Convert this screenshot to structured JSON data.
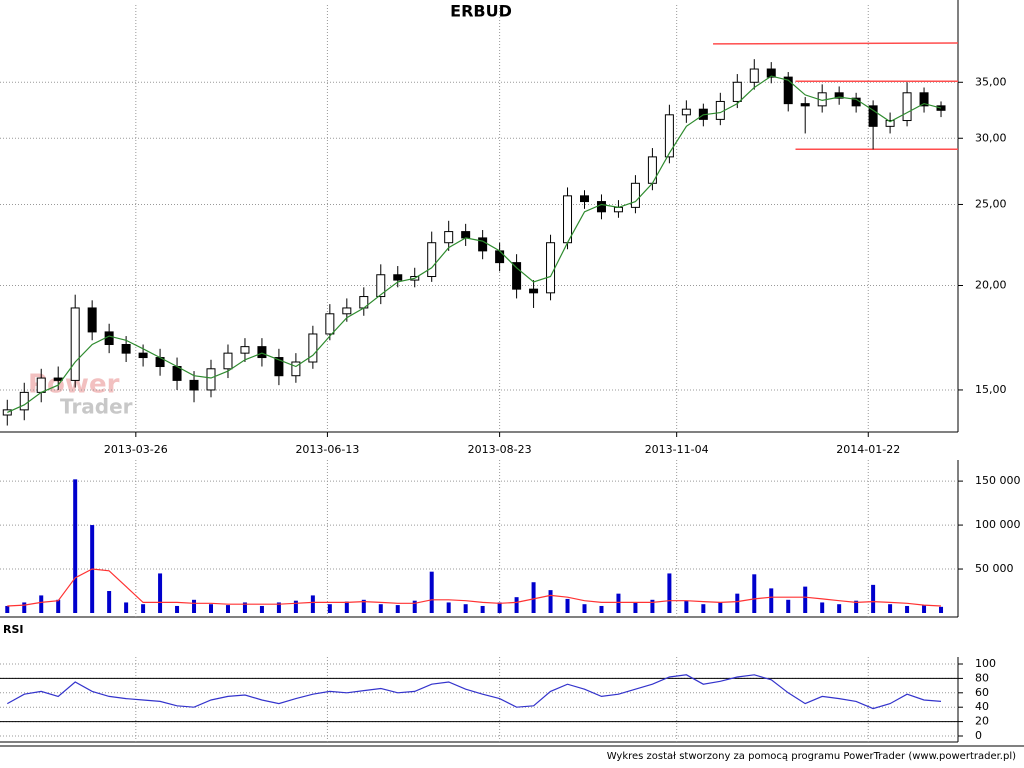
{
  "chart_data": {
    "type": "candlestick",
    "title": "ERBUD",
    "watermark": [
      "Power",
      "Trader"
    ],
    "footer": "Wykres został stworzony za pomocą programu PowerTrader (www.powertrader.pl)",
    "log_y": true,
    "grid": true,
    "xlim": [
      "2013-01-29",
      "2014-02-28"
    ],
    "xticks": [
      "2013-03-26",
      "2013-06-13",
      "2013-08-23",
      "2013-11-04",
      "2014-01-22"
    ],
    "ylim": [
      13.36,
      43.9
    ],
    "yticks": [
      {
        "value": 15,
        "label": "15,00"
      },
      {
        "value": 20,
        "label": "20,00"
      },
      {
        "value": 25,
        "label": "25,00"
      },
      {
        "value": 30,
        "label": "30,00"
      },
      {
        "value": 35,
        "label": "35,00"
      }
    ],
    "up_color": "#ffffff",
    "down_color": "#000000",
    "ma_color": "#2e8b2e",
    "x": [
      "2013-02-01",
      "2013-02-08",
      "2013-02-15",
      "2013-02-22",
      "2013-03-01",
      "2013-03-08",
      "2013-03-15",
      "2013-03-22",
      "2013-03-29",
      "2013-04-05",
      "2013-04-12",
      "2013-04-19",
      "2013-04-26",
      "2013-05-03",
      "2013-05-10",
      "2013-05-17",
      "2013-05-24",
      "2013-05-31",
      "2013-06-07",
      "2013-06-14",
      "2013-06-21",
      "2013-06-28",
      "2013-07-05",
      "2013-07-12",
      "2013-07-19",
      "2013-07-26",
      "2013-08-02",
      "2013-08-09",
      "2013-08-16",
      "2013-08-23",
      "2013-08-30",
      "2013-09-06",
      "2013-09-13",
      "2013-09-20",
      "2013-09-27",
      "2013-10-04",
      "2013-10-11",
      "2013-10-18",
      "2013-10-25",
      "2013-11-01",
      "2013-11-08",
      "2013-11-15",
      "2013-11-22",
      "2013-11-29",
      "2013-12-06",
      "2013-12-13",
      "2013-12-20",
      "2013-12-27",
      "2014-01-03",
      "2014-01-10",
      "2014-01-17",
      "2014-01-24",
      "2014-01-31",
      "2014-02-07",
      "2014-02-14",
      "2014-02-21"
    ],
    "open": [
      14.0,
      14.2,
      14.9,
      15.5,
      15.4,
      18.8,
      17.6,
      17.0,
      16.6,
      16.4,
      16.0,
      15.4,
      15.0,
      15.9,
      16.6,
      16.9,
      16.4,
      15.6,
      16.2,
      17.5,
      18.5,
      18.8,
      19.4,
      20.6,
      20.3,
      20.5,
      22.5,
      23.2,
      22.8,
      22.0,
      21.3,
      19.8,
      19.6,
      22.5,
      25.6,
      25.2,
      24.5,
      24.8,
      26.5,
      28.5,
      32.0,
      32.5,
      31.6,
      33.2,
      35.0,
      36.3,
      35.5,
      33.0,
      32.8,
      34.0,
      33.5,
      32.8,
      31.0,
      31.5,
      34.0,
      32.8
    ],
    "high": [
      14.6,
      15.3,
      15.9,
      16.0,
      19.5,
      19.2,
      18.0,
      17.4,
      17.0,
      16.8,
      16.4,
      15.8,
      16.3,
      17.0,
      17.3,
      17.3,
      16.8,
      16.6,
      17.9,
      19.0,
      19.3,
      19.9,
      21.2,
      21.1,
      21.0,
      23.2,
      23.9,
      23.7,
      23.3,
      22.5,
      21.8,
      20.3,
      23.0,
      26.2,
      26.0,
      25.7,
      25.3,
      27.1,
      29.2,
      32.9,
      33.3,
      33.0,
      34.0,
      35.8,
      37.3,
      37.0,
      36.0,
      33.6,
      34.8,
      34.6,
      34.0,
      33.3,
      32.2,
      35.0,
      34.5,
      33.2
    ],
    "low": [
      13.6,
      13.8,
      14.5,
      15.0,
      15.1,
      17.2,
      16.6,
      16.2,
      16.0,
      15.6,
      15.0,
      14.5,
      14.7,
      15.5,
      16.2,
      16.0,
      15.2,
      15.3,
      15.9,
      17.2,
      18.1,
      18.4,
      19.0,
      19.9,
      19.9,
      20.2,
      22.0,
      22.3,
      21.5,
      20.8,
      19.3,
      18.8,
      19.2,
      22.1,
      24.7,
      24.0,
      24.1,
      24.4,
      26.0,
      28.0,
      31.3,
      31.0,
      31.1,
      32.6,
      34.3,
      34.9,
      32.3,
      30.4,
      32.2,
      32.9,
      32.2,
      29.1,
      30.4,
      31.0,
      32.2,
      31.8
    ],
    "close": [
      14.2,
      14.9,
      15.5,
      15.4,
      18.8,
      17.6,
      17.0,
      16.6,
      16.4,
      16.0,
      15.4,
      15.0,
      15.9,
      16.6,
      16.9,
      16.4,
      15.6,
      16.2,
      17.5,
      18.5,
      18.8,
      19.4,
      20.6,
      20.3,
      20.5,
      22.5,
      23.2,
      22.8,
      22.0,
      21.3,
      19.8,
      19.6,
      22.5,
      25.6,
      25.2,
      24.5,
      24.8,
      26.5,
      28.5,
      32.0,
      32.5,
      31.6,
      33.2,
      35.0,
      36.3,
      35.5,
      33.0,
      32.8,
      34.0,
      33.5,
      32.8,
      31.0,
      31.5,
      34.0,
      32.8,
      32.4
    ],
    "ma": [
      14.1,
      14.4,
      14.9,
      15.2,
      16.2,
      17.0,
      17.4,
      17.2,
      16.8,
      16.4,
      16.0,
      15.6,
      15.5,
      15.8,
      16.3,
      16.6,
      16.3,
      16.0,
      16.5,
      17.4,
      18.3,
      18.8,
      19.5,
      20.2,
      20.4,
      21.0,
      22.2,
      22.8,
      22.6,
      22.0,
      21.0,
      20.2,
      20.5,
      22.5,
      24.5,
      25.0,
      24.8,
      25.2,
      26.5,
      28.8,
      31.0,
      32.0,
      32.2,
      33.0,
      34.5,
      35.6,
      35.2,
      33.8,
      33.3,
      33.6,
      33.4,
      32.4,
      31.4,
      32.2,
      33.0,
      32.6
    ],
    "trend_lines": [
      {
        "color": "#ff4d4d",
        "x": [
          "2013-11-19",
          "2014-02-28"
        ],
        "y": [
          38.9,
          39.0
        ]
      },
      {
        "color": "#ff4d4d",
        "x": [
          "2013-12-23",
          "2014-02-28"
        ],
        "y": [
          35.1,
          35.1
        ]
      },
      {
        "color": "#ff4d4d",
        "x": [
          "2013-12-23",
          "2014-02-28"
        ],
        "y": [
          29.1,
          29.1
        ]
      }
    ],
    "volume": {
      "type": "bar",
      "color": "#0000cc",
      "ma_color": "#ff3333",
      "ylim": [
        0,
        174000
      ],
      "yticks": [
        {
          "value": 50000,
          "label": "50 000"
        },
        {
          "value": 100000,
          "label": "100 000"
        },
        {
          "value": 150000,
          "label": "150 000"
        }
      ],
      "values": [
        8000,
        12000,
        20000,
        15000,
        152000,
        100000,
        25000,
        12000,
        10000,
        45000,
        8000,
        15000,
        10000,
        9000,
        12000,
        8000,
        12000,
        14000,
        20000,
        10000,
        13000,
        15000,
        10000,
        9000,
        14000,
        47000,
        12000,
        10000,
        8000,
        12000,
        18000,
        35000,
        26000,
        16000,
        10000,
        8000,
        22000,
        12000,
        15000,
        45000,
        14000,
        10000,
        12000,
        22000,
        44000,
        28000,
        15000,
        30000,
        12000,
        10000,
        14000,
        32000,
        10000,
        8000,
        9000,
        7000
      ],
      "ma": [
        8000,
        9000,
        12000,
        14000,
        40000,
        50000,
        48000,
        30000,
        12000,
        12000,
        12000,
        11000,
        11000,
        10000,
        10000,
        10000,
        10000,
        11000,
        12000,
        12000,
        12000,
        13000,
        12000,
        11000,
        11000,
        15000,
        15000,
        14000,
        12000,
        11000,
        12000,
        16000,
        20000,
        18000,
        14000,
        12000,
        12000,
        12000,
        12000,
        14000,
        14000,
        13000,
        12000,
        13000,
        16000,
        18000,
        18000,
        18000,
        16000,
        14000,
        12000,
        13000,
        12000,
        11000,
        9000,
        8000
      ]
    },
    "rsi": {
      "type": "line",
      "label": "RSI",
      "color": "#3333cc",
      "ylim": [
        0,
        100
      ],
      "yticks": [
        0,
        20,
        40,
        60,
        80,
        100
      ],
      "levels": [
        20,
        80
      ],
      "values": [
        45,
        58,
        62,
        55,
        75,
        62,
        55,
        52,
        50,
        48,
        42,
        40,
        50,
        55,
        57,
        50,
        45,
        52,
        58,
        62,
        60,
        63,
        66,
        60,
        62,
        72,
        75,
        65,
        58,
        52,
        40,
        42,
        62,
        72,
        65,
        55,
        58,
        65,
        72,
        82,
        85,
        72,
        76,
        82,
        85,
        78,
        60,
        45,
        55,
        52,
        48,
        38,
        45,
        58,
        50,
        48
      ]
    }
  }
}
